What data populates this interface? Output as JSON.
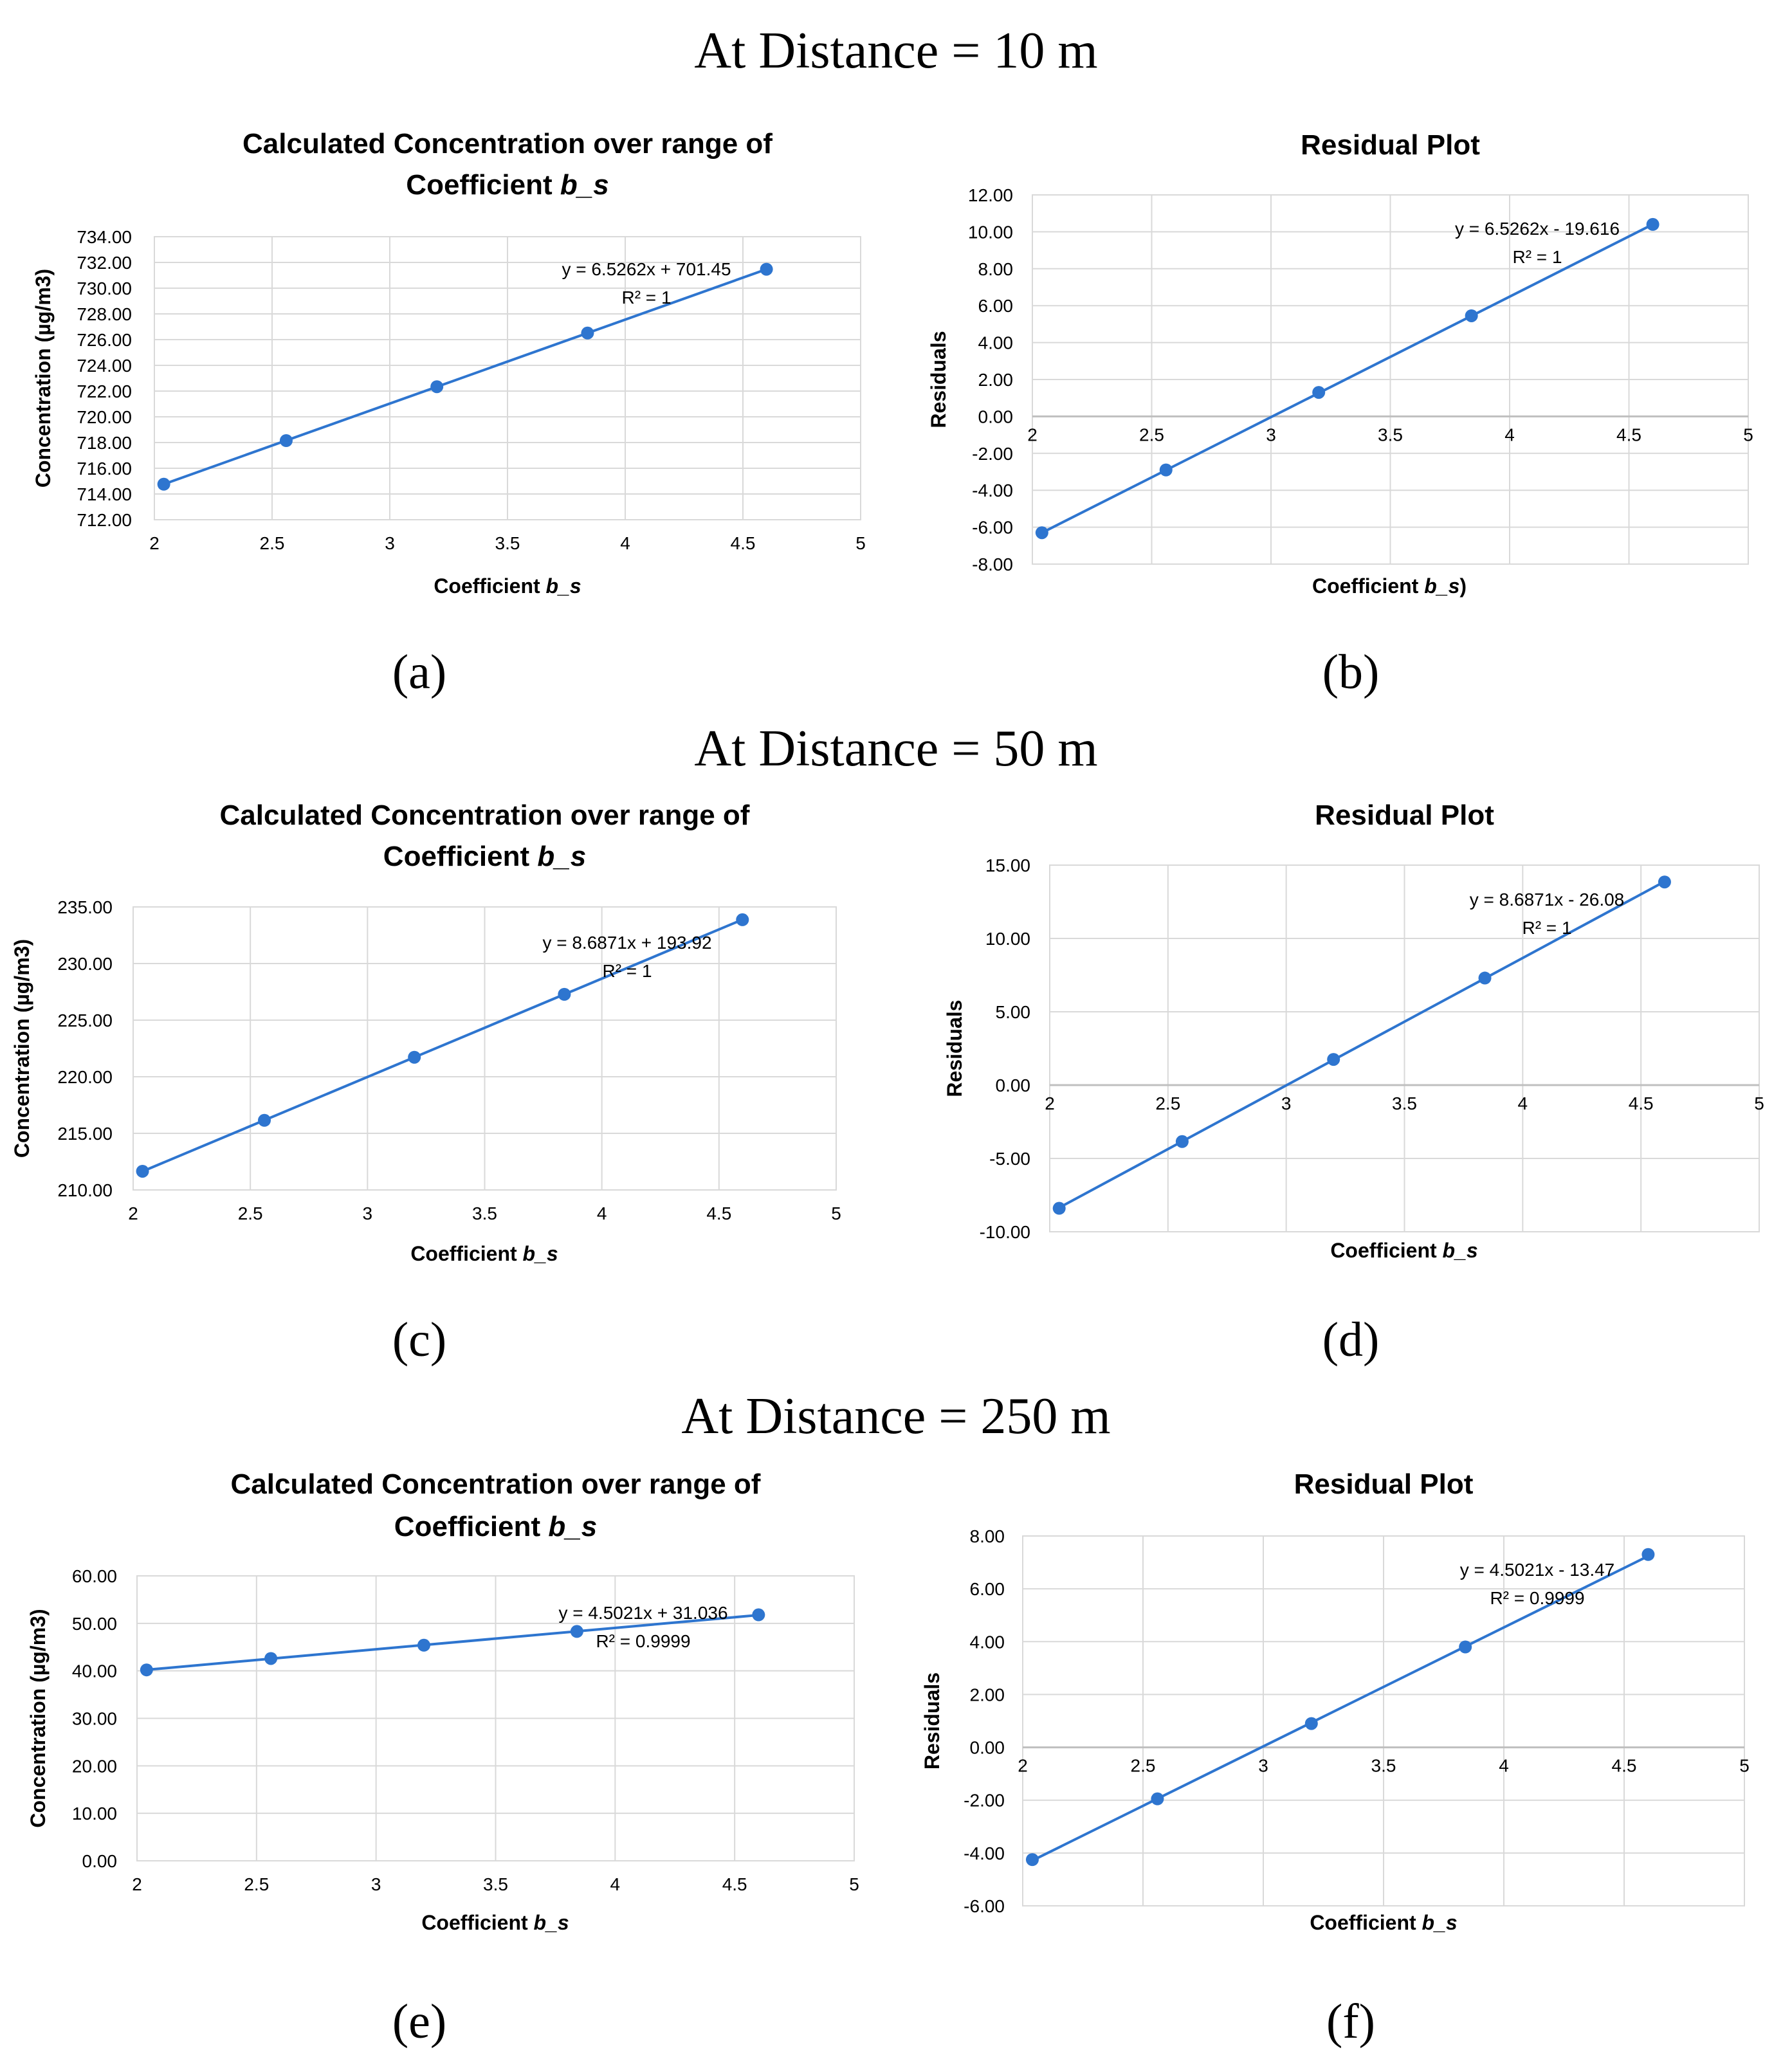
{
  "figure": {
    "sections": [
      {
        "title": "At Distance = 10 m"
      },
      {
        "title": "At Distance = 50 m"
      },
      {
        "title": "At Distance = 250 m"
      }
    ],
    "panel_labels": [
      "(a)",
      "(b)",
      "(c)",
      "(d)",
      "(e)",
      "(f)"
    ]
  },
  "colors": {
    "series": "#2e75cf",
    "grid": "#d9d9d9"
  },
  "chart_data": [
    {
      "id": "a",
      "type": "scatter",
      "title": [
        "Calculated Concentration over range of",
        "Coefficient b_s"
      ],
      "xlabel": "Coefficient b_s",
      "ylabel": "Concentration (µg/m3)",
      "x": [
        2.04,
        2.56,
        3.2,
        3.84,
        4.6
      ],
      "y": [
        714.76,
        718.15,
        722.34,
        726.51,
        731.47
      ],
      "xlim": [
        2,
        5
      ],
      "ylim": [
        712,
        734
      ],
      "xticks": [
        "2",
        "2.5",
        "3",
        "3.5",
        "4",
        "4.5",
        "5"
      ],
      "yticks": [
        "712.00",
        "714.00",
        "716.00",
        "718.00",
        "720.00",
        "722.00",
        "724.00",
        "726.00",
        "728.00",
        "730.00",
        "732.00",
        "734.00"
      ],
      "trendline": {
        "slope": 6.5262,
        "intercept": 701.45
      },
      "equation": "y = 6.5262x + 701.45",
      "r2": "R² = 1"
    },
    {
      "id": "b",
      "type": "scatter",
      "title": [
        "Residual Plot"
      ],
      "xlabel": "Coefficient b_s)",
      "ylabel": "Residuals",
      "x": [
        2.04,
        2.56,
        3.2,
        3.84,
        4.6
      ],
      "y": [
        -6.3,
        -2.9,
        1.3,
        5.45,
        10.4
      ],
      "xlim": [
        2,
        5
      ],
      "ylim": [
        -8,
        12
      ],
      "xticks": [
        "2",
        "2.5",
        "3",
        "3.5",
        "4",
        "4.5",
        "5"
      ],
      "yticks": [
        "-8.00",
        "-6.00",
        "-4.00",
        "-2.00",
        "0.00",
        "2.00",
        "4.00",
        "6.00",
        "8.00",
        "10.00",
        "12.00"
      ],
      "trendline": {
        "slope": 6.5262,
        "intercept": -19.616
      },
      "equation": "y = 6.5262x - 19.616",
      "r2": "R² = 1"
    },
    {
      "id": "c",
      "type": "scatter",
      "title": [
        "Calculated Concentration over range of",
        "Coefficient b_s"
      ],
      "xlabel": "Coefficient b_s",
      "ylabel": "Concentration (µg/m3)",
      "x": [
        2.04,
        2.56,
        3.2,
        3.84,
        4.6
      ],
      "y": [
        211.65,
        216.15,
        221.72,
        227.28,
        233.87
      ],
      "xlim": [
        2,
        5
      ],
      "ylim": [
        210,
        235
      ],
      "xticks": [
        "2",
        "2.5",
        "3",
        "3.5",
        "4",
        "4.5",
        "5"
      ],
      "yticks": [
        "210.00",
        "215.00",
        "220.00",
        "225.00",
        "230.00",
        "235.00"
      ],
      "trendline": {
        "slope": 8.6871,
        "intercept": 193.92
      },
      "equation": "y = 8.6871x + 193.92",
      "r2": "R² = 1"
    },
    {
      "id": "d",
      "type": "scatter",
      "title": [
        "Residual Plot"
      ],
      "xlabel": "Coefficient b_s",
      "ylabel": "Residuals",
      "x": [
        2.04,
        2.56,
        3.2,
        3.84,
        4.6
      ],
      "y": [
        -8.4,
        -3.85,
        1.75,
        7.3,
        13.85
      ],
      "xlim": [
        2,
        5
      ],
      "ylim": [
        -10,
        15
      ],
      "xticks": [
        "2",
        "2.5",
        "3",
        "3.5",
        "4",
        "4.5",
        "5"
      ],
      "yticks": [
        "-10.00",
        "-5.00",
        "0.00",
        "5.00",
        "10.00",
        "15.00"
      ],
      "trendline": {
        "slope": 8.6871,
        "intercept": -26.08
      },
      "equation": "y = 8.6871x - 26.08",
      "r2": "R² = 1"
    },
    {
      "id": "e",
      "type": "scatter",
      "title": [
        "Calculated Concentration over range of",
        "Coefficient b_s"
      ],
      "xlabel": "Coefficient b_s",
      "ylabel": "Concentration (µg/m3)",
      "x": [
        2.04,
        2.56,
        3.2,
        3.84,
        4.6
      ],
      "y": [
        40.2,
        42.6,
        45.4,
        48.3,
        51.8
      ],
      "xlim": [
        2,
        5
      ],
      "ylim": [
        0,
        60
      ],
      "xticks": [
        "2",
        "2.5",
        "3",
        "3.5",
        "4",
        "4.5",
        "5"
      ],
      "yticks": [
        "0.00",
        "10.00",
        "20.00",
        "30.00",
        "40.00",
        "50.00",
        "60.00"
      ],
      "trendline": {
        "slope": 4.5021,
        "intercept": 31.036
      },
      "equation": "y = 4.5021x + 31.036",
      "r2": "R² = 0.9999"
    },
    {
      "id": "f",
      "type": "scatter",
      "title": [
        "Residual Plot"
      ],
      "xlabel": "Coefficient b_s",
      "ylabel": "Residuals",
      "x": [
        2.04,
        2.56,
        3.2,
        3.84,
        4.6
      ],
      "y": [
        -4.25,
        -1.95,
        0.9,
        3.8,
        7.3
      ],
      "xlim": [
        2,
        5
      ],
      "ylim": [
        -6,
        8
      ],
      "xticks": [
        "2",
        "2.5",
        "3",
        "3.5",
        "4",
        "4.5",
        "5"
      ],
      "yticks": [
        "-6.00",
        "-4.00",
        "-2.00",
        "0.00",
        "2.00",
        "4.00",
        "6.00",
        "8.00"
      ],
      "trendline": {
        "slope": 4.5021,
        "intercept": -13.47
      },
      "equation": "y = 4.5021x - 13.47",
      "r2": "R² = 0.9999"
    }
  ]
}
